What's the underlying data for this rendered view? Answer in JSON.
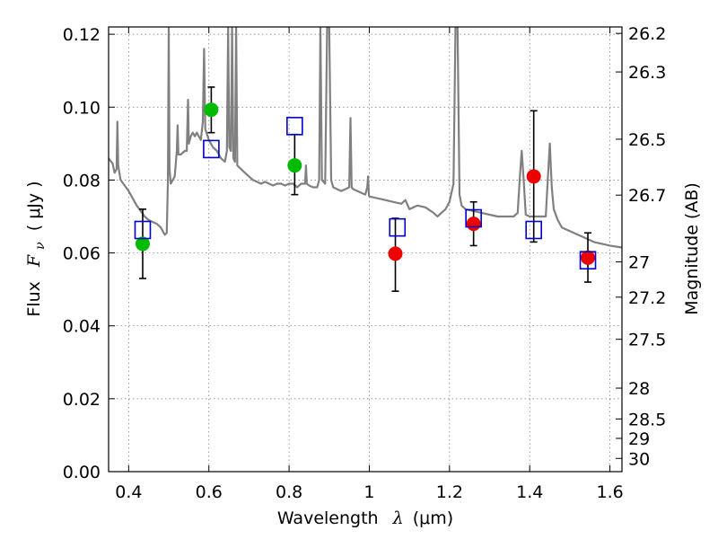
{
  "chart_data": {
    "type": "scatter",
    "xlabel_text": "Wavelength",
    "xlabel_math": "λ",
    "xlabel_unit": "(μm)",
    "ylabel_text": "Flux",
    "ylabel_math": "F",
    "ylabel_sub": "ν",
    "ylabel_unit": "( μJy )",
    "y2label": "Magnitude (AB)",
    "xlim": [
      0.35,
      1.63
    ],
    "ylim": [
      0.0,
      0.122
    ],
    "x_ticks": [
      0.4,
      0.6,
      0.8,
      1.0,
      1.2,
      1.4,
      1.6
    ],
    "x_tick_labels": [
      "0.4",
      "0.6",
      "0.8",
      "1",
      "1.2",
      "1.4",
      "1.6"
    ],
    "y_ticks": [
      0.0,
      0.02,
      0.04,
      0.06,
      0.08,
      0.1,
      0.12
    ],
    "y_tick_labels": [
      "0.00",
      "0.02",
      "0.04",
      "0.06",
      "0.08",
      "0.10",
      "0.12"
    ],
    "y2_ticks": [
      26.2,
      26.3,
      26.5,
      26.7,
      27,
      27.2,
      27.5,
      28,
      28.5,
      29,
      30
    ],
    "y2_tick_labels": [
      "26.2",
      "26.3",
      "26.5",
      "26.7",
      "27",
      "27.2",
      "27.5",
      "28",
      "28.5",
      "29",
      "30"
    ],
    "grid": true,
    "colors": {
      "spectrum": "#808080",
      "optical_points": "#00bb00",
      "ir_points": "#ee0000",
      "model_boxes": "#0000cc",
      "errorbars": "#000000"
    },
    "spectrum": [
      [
        0.35,
        0.086
      ],
      [
        0.36,
        0.0845
      ],
      [
        0.365,
        0.082
      ],
      [
        0.37,
        0.083
      ],
      [
        0.372,
        0.096
      ],
      [
        0.374,
        0.084
      ],
      [
        0.38,
        0.08
      ],
      [
        0.39,
        0.0785
      ],
      [
        0.4,
        0.077
      ],
      [
        0.41,
        0.075
      ],
      [
        0.42,
        0.073
      ],
      [
        0.43,
        0.0715
      ],
      [
        0.44,
        0.07
      ],
      [
        0.45,
        0.069
      ],
      [
        0.46,
        0.0685
      ],
      [
        0.47,
        0.068
      ],
      [
        0.48,
        0.067
      ],
      [
        0.49,
        0.065
      ],
      [
        0.495,
        0.0655
      ],
      [
        0.498,
        0.08
      ],
      [
        0.5,
        0.122
      ],
      [
        0.502,
        0.083
      ],
      [
        0.505,
        0.079
      ],
      [
        0.51,
        0.08
      ],
      [
        0.515,
        0.081
      ],
      [
        0.52,
        0.088
      ],
      [
        0.522,
        0.095
      ],
      [
        0.524,
        0.087
      ],
      [
        0.53,
        0.087
      ],
      [
        0.54,
        0.088
      ],
      [
        0.545,
        0.088
      ],
      [
        0.548,
        0.102
      ],
      [
        0.55,
        0.09
      ],
      [
        0.555,
        0.092
      ],
      [
        0.56,
        0.093
      ],
      [
        0.565,
        0.092
      ],
      [
        0.57,
        0.093
      ],
      [
        0.58,
        0.091
      ],
      [
        0.585,
        0.096
      ],
      [
        0.588,
        0.116
      ],
      [
        0.591,
        0.094
      ],
      [
        0.6,
        0.091
      ],
      [
        0.61,
        0.089
      ],
      [
        0.62,
        0.088
      ],
      [
        0.63,
        0.086
      ],
      [
        0.64,
        0.085
      ],
      [
        0.645,
        0.088
      ],
      [
        0.648,
        0.122
      ],
      [
        0.651,
        0.089
      ],
      [
        0.655,
        0.088
      ],
      [
        0.658,
        0.122
      ],
      [
        0.661,
        0.086
      ],
      [
        0.665,
        0.085
      ],
      [
        0.668,
        0.122
      ],
      [
        0.671,
        0.084
      ],
      [
        0.68,
        0.083
      ],
      [
        0.69,
        0.082
      ],
      [
        0.7,
        0.081
      ],
      [
        0.71,
        0.08
      ],
      [
        0.72,
        0.0795
      ],
      [
        0.73,
        0.079
      ],
      [
        0.74,
        0.0795
      ],
      [
        0.75,
        0.079
      ],
      [
        0.76,
        0.0785
      ],
      [
        0.77,
        0.079
      ],
      [
        0.78,
        0.079
      ],
      [
        0.79,
        0.0785
      ],
      [
        0.8,
        0.079
      ],
      [
        0.81,
        0.079
      ],
      [
        0.82,
        0.078
      ],
      [
        0.83,
        0.079
      ],
      [
        0.84,
        0.079
      ],
      [
        0.842,
        0.084
      ],
      [
        0.844,
        0.079
      ],
      [
        0.85,
        0.0785
      ],
      [
        0.86,
        0.078
      ],
      [
        0.87,
        0.078
      ],
      [
        0.875,
        0.08
      ],
      [
        0.878,
        0.122
      ],
      [
        0.882,
        0.08
      ],
      [
        0.89,
        0.079
      ],
      [
        0.895,
        0.122
      ],
      [
        0.9,
        0.122
      ],
      [
        0.905,
        0.08
      ],
      [
        0.91,
        0.078
      ],
      [
        0.92,
        0.0775
      ],
      [
        0.93,
        0.077
      ],
      [
        0.94,
        0.0775
      ],
      [
        0.95,
        0.078
      ],
      [
        0.953,
        0.097
      ],
      [
        0.956,
        0.078
      ],
      [
        0.96,
        0.0775
      ],
      [
        0.97,
        0.077
      ],
      [
        0.98,
        0.0765
      ],
      [
        0.99,
        0.076
      ],
      [
        0.995,
        0.078
      ],
      [
        0.997,
        0.081
      ],
      [
        0.999,
        0.076
      ],
      [
        1.0,
        0.0755
      ],
      [
        1.02,
        0.075
      ],
      [
        1.04,
        0.0745
      ],
      [
        1.06,
        0.074
      ],
      [
        1.08,
        0.0735
      ],
      [
        1.09,
        0.0745
      ],
      [
        1.1,
        0.072
      ],
      [
        1.12,
        0.073
      ],
      [
        1.14,
        0.0725
      ],
      [
        1.16,
        0.071
      ],
      [
        1.17,
        0.07
      ],
      [
        1.18,
        0.071
      ],
      [
        1.19,
        0.072
      ],
      [
        1.2,
        0.074
      ],
      [
        1.21,
        0.079
      ],
      [
        1.215,
        0.122
      ],
      [
        1.22,
        0.122
      ],
      [
        1.225,
        0.076
      ],
      [
        1.23,
        0.073
      ],
      [
        1.24,
        0.072
      ],
      [
        1.26,
        0.0715
      ],
      [
        1.28,
        0.071
      ],
      [
        1.3,
        0.0705
      ],
      [
        1.32,
        0.07
      ],
      [
        1.34,
        0.07
      ],
      [
        1.36,
        0.07
      ],
      [
        1.37,
        0.071
      ],
      [
        1.375,
        0.08
      ],
      [
        1.38,
        0.088
      ],
      [
        1.385,
        0.08
      ],
      [
        1.39,
        0.0705
      ],
      [
        1.4,
        0.07
      ],
      [
        1.42,
        0.07
      ],
      [
        1.44,
        0.07
      ],
      [
        1.445,
        0.08
      ],
      [
        1.45,
        0.09
      ],
      [
        1.455,
        0.078
      ],
      [
        1.46,
        0.072
      ],
      [
        1.47,
        0.069
      ],
      [
        1.48,
        0.067
      ],
      [
        1.5,
        0.066
      ],
      [
        1.52,
        0.065
      ],
      [
        1.54,
        0.064
      ],
      [
        1.56,
        0.063
      ],
      [
        1.58,
        0.0625
      ],
      [
        1.6,
        0.062
      ],
      [
        1.63,
        0.0615
      ]
    ],
    "observed_optical": [
      {
        "x": 0.435,
        "y": 0.0625,
        "yerr_low": 0.053,
        "yerr_high": 0.072
      },
      {
        "x": 0.606,
        "y": 0.0993,
        "yerr_low": 0.093,
        "yerr_high": 0.1055
      },
      {
        "x": 0.814,
        "y": 0.084,
        "yerr_low": 0.076,
        "yerr_high": 0.0925
      }
    ],
    "observed_ir": [
      {
        "x": 1.065,
        "y": 0.0598,
        "yerr_low": 0.0495,
        "yerr_high": 0.0695
      },
      {
        "x": 1.26,
        "y": 0.068,
        "yerr_low": 0.062,
        "yerr_high": 0.074
      },
      {
        "x": 1.41,
        "y": 0.081,
        "yerr_low": 0.063,
        "yerr_high": 0.099
      },
      {
        "x": 1.545,
        "y": 0.0587,
        "yerr_low": 0.052,
        "yerr_high": 0.0655
      }
    ],
    "model_photometry": [
      {
        "x": 0.435,
        "y": 0.0663
      },
      {
        "x": 0.606,
        "y": 0.0885
      },
      {
        "x": 0.814,
        "y": 0.0948
      },
      {
        "x": 1.07,
        "y": 0.067
      },
      {
        "x": 1.26,
        "y": 0.0695
      },
      {
        "x": 1.41,
        "y": 0.0663
      },
      {
        "x": 1.545,
        "y": 0.058
      }
    ]
  }
}
